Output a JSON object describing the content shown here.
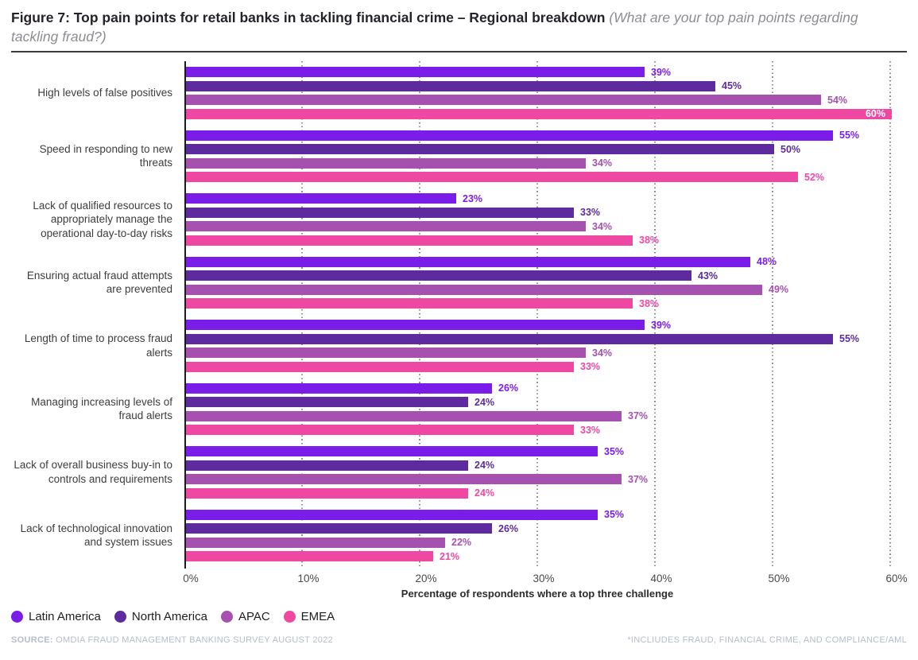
{
  "header": {
    "title": "Figure 7: Top pain points for retail banks in tackling financial crime – Regional breakdown",
    "subtitle": "(What are your top pain points regarding tackling fraud?)"
  },
  "chart_data": {
    "type": "bar",
    "orientation": "horizontal",
    "title": "Top pain points for retail banks in tackling financial crime – Regional breakdown",
    "categories": [
      "High levels of false positives",
      "Speed in responding to new threats",
      "Lack of qualified resources to appropriately manage the operational day-to-day risks",
      "Ensuring actual fraud attempts are prevented",
      "Length of time to process fraud alerts",
      "Managing increasing levels of fraud alerts",
      "Lack of overall business buy-in to controls and requirements",
      "Lack of technological innovation and system issues"
    ],
    "series": [
      {
        "name": "Latin America",
        "color": "#7b1de8",
        "values": [
          39,
          55,
          23,
          48,
          39,
          26,
          35,
          35
        ]
      },
      {
        "name": "North America",
        "color": "#5e2b9e",
        "values": [
          45,
          50,
          33,
          43,
          55,
          24,
          24,
          26
        ]
      },
      {
        "name": "APAC",
        "color": "#a651af",
        "values": [
          54,
          34,
          34,
          49,
          34,
          37,
          37,
          22
        ]
      },
      {
        "name": "EMEA",
        "color": "#ef48a3",
        "values": [
          60,
          52,
          38,
          38,
          33,
          33,
          24,
          21
        ]
      }
    ],
    "value_suffix": "%",
    "xlabel": "Percentage of respondents where a top three challenge",
    "x_ticks": [
      "0%",
      "10%",
      "20%",
      "30%",
      "40%",
      "50%",
      "60%"
    ],
    "xlim": [
      0,
      60
    ],
    "grid": "dotted-vertical",
    "legend_position": "bottom-left"
  },
  "footer": {
    "source_label": "SOURCE:",
    "source_text": " OMDIA FRAUD MANAGEMENT BANKING SURVEY AUGUST 2022",
    "footnote": "*INCLIUDES FRAUD, FINANCIAL CRIME, AND COMPLIANCE/AML"
  }
}
